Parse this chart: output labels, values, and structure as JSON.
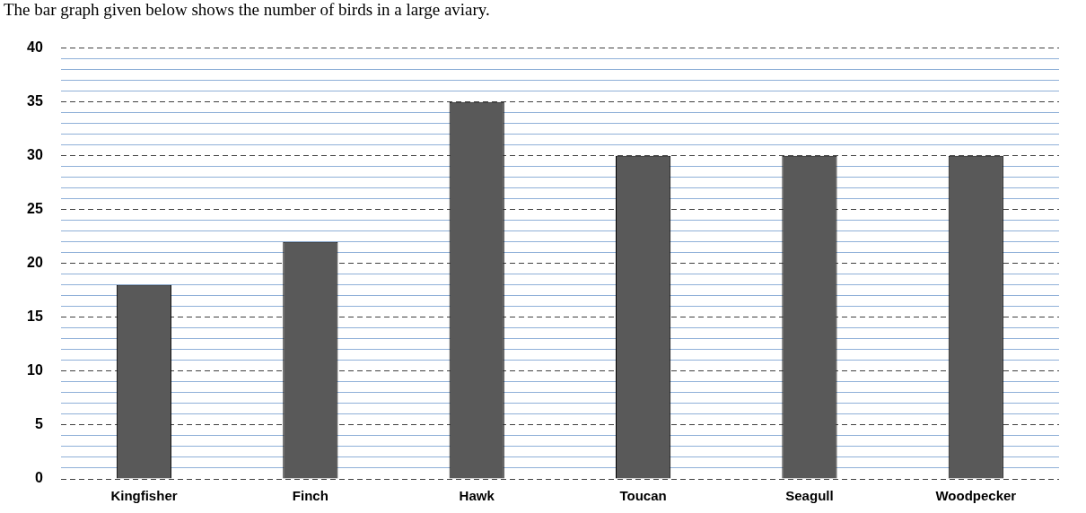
{
  "chart_data": {
    "type": "bar",
    "title": "The bar graph given below shows the number of birds in a large aviary.",
    "categories": [
      "Kingfisher",
      "Finch",
      "Hawk",
      "Toucan",
      "Seagull",
      "Woodpecker"
    ],
    "values": [
      18,
      22,
      35,
      30,
      30,
      30
    ],
    "color": "#595959",
    "ylim": [
      0,
      40
    ],
    "yticks": [
      0,
      {
        "value": 1,
        "label": null
      },
      {
        "value": 2,
        "label": null
      },
      {
        "value": 3,
        "label": null
      },
      {
        "value": 4,
        "label": null
      },
      5,
      {
        "value": 6,
        "label": null
      },
      {
        "value": 7,
        "label": null
      },
      {
        "value": 8,
        "label": null
      },
      {
        "value": 9,
        "label": null
      },
      10,
      {
        "value": 11,
        "label": null
      },
      {
        "value": 12,
        "label": null
      },
      {
        "value": 13,
        "label": null
      },
      {
        "value": 14,
        "label": null
      },
      15,
      {
        "value": 16,
        "label": null
      },
      {
        "value": 17,
        "label": null
      },
      {
        "value": 18,
        "label": null
      },
      {
        "value": 19,
        "label": null
      },
      20,
      {
        "value": 21,
        "label": null
      },
      {
        "value": 22,
        "label": null
      },
      {
        "value": 23,
        "label": null
      },
      {
        "value": 24,
        "label": null
      },
      25,
      {
        "value": 26,
        "label": null
      },
      {
        "value": 27,
        "label": null
      },
      {
        "value": 28,
        "label": null
      },
      {
        "value": 29,
        "label": null
      },
      30,
      {
        "value": 31,
        "label": null
      },
      {
        "value": 32,
        "label": null
      },
      {
        "value": 33,
        "label": null
      },
      {
        "value": 34,
        "label": null
      },
      35,
      {
        "value": 36,
        "label": null
      },
      {
        "value": 37,
        "label": null
      },
      {
        "value": 38,
        "label": null
      },
      {
        "value": 39,
        "label": null
      },
      40
    ],
    "grid": "y",
    "legend": false
  }
}
